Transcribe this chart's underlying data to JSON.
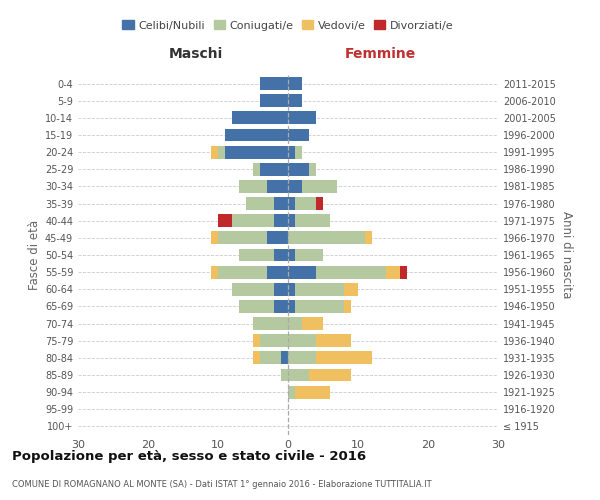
{
  "age_groups": [
    "0-4",
    "5-9",
    "10-14",
    "15-19",
    "20-24",
    "25-29",
    "30-34",
    "35-39",
    "40-44",
    "45-49",
    "50-54",
    "55-59",
    "60-64",
    "65-69",
    "70-74",
    "75-79",
    "80-84",
    "85-89",
    "90-94",
    "95-99",
    "100+"
  ],
  "birth_years": [
    "2011-2015",
    "2006-2010",
    "2001-2005",
    "1996-2000",
    "1991-1995",
    "1986-1990",
    "1981-1985",
    "1976-1980",
    "1971-1975",
    "1966-1970",
    "1961-1965",
    "1956-1960",
    "1951-1955",
    "1946-1950",
    "1941-1945",
    "1936-1940",
    "1931-1935",
    "1926-1930",
    "1921-1925",
    "1916-1920",
    "≤ 1915"
  ],
  "colors": {
    "celibe": "#4472a8",
    "coniugato": "#b5c9a0",
    "vedovo": "#f0c060",
    "divorziato": "#c0282a"
  },
  "maschi": {
    "celibe": [
      4,
      4,
      8,
      9,
      9,
      4,
      3,
      2,
      2,
      3,
      2,
      3,
      2,
      2,
      0,
      0,
      1,
      0,
      0,
      0,
      0
    ],
    "coniugato": [
      0,
      0,
      0,
      0,
      1,
      1,
      4,
      4,
      6,
      7,
      5,
      7,
      6,
      5,
      5,
      4,
      3,
      1,
      0,
      0,
      0
    ],
    "vedovo": [
      0,
      0,
      0,
      0,
      1,
      0,
      0,
      0,
      0,
      1,
      0,
      1,
      0,
      0,
      0,
      1,
      1,
      0,
      0,
      0,
      0
    ],
    "divorziato": [
      0,
      0,
      0,
      0,
      0,
      0,
      0,
      0,
      2,
      0,
      0,
      0,
      0,
      0,
      0,
      0,
      0,
      0,
      0,
      0,
      0
    ]
  },
  "femmine": {
    "nubile": [
      2,
      2,
      4,
      3,
      1,
      3,
      2,
      1,
      1,
      0,
      1,
      4,
      1,
      1,
      0,
      0,
      0,
      0,
      0,
      0,
      0
    ],
    "coniugata": [
      0,
      0,
      0,
      0,
      1,
      1,
      5,
      3,
      5,
      11,
      4,
      10,
      7,
      7,
      2,
      4,
      4,
      3,
      1,
      0,
      0
    ],
    "vedova": [
      0,
      0,
      0,
      0,
      0,
      0,
      0,
      0,
      0,
      1,
      0,
      2,
      2,
      1,
      3,
      5,
      8,
      6,
      5,
      0,
      0
    ],
    "divorziata": [
      0,
      0,
      0,
      0,
      0,
      0,
      0,
      1,
      0,
      0,
      0,
      1,
      0,
      0,
      0,
      0,
      0,
      0,
      0,
      0,
      0
    ]
  },
  "xlim": 30,
  "title1": "Popolazione per età, sesso e stato civile - 2016",
  "title2": "COMUNE DI ROMAGNANO AL MONTE (SA) - Dati ISTAT 1° gennaio 2016 - Elaborazione TUTTITALIA.IT",
  "legend_labels": [
    "Celibi/Nubili",
    "Coniugati/e",
    "Vedovi/e",
    "Divorziati/e"
  ],
  "ylabel_left": "Fasce di età",
  "ylabel_right": "Anni di nascita",
  "xlabel_maschi": "Maschi",
  "xlabel_femmine": "Femmine"
}
